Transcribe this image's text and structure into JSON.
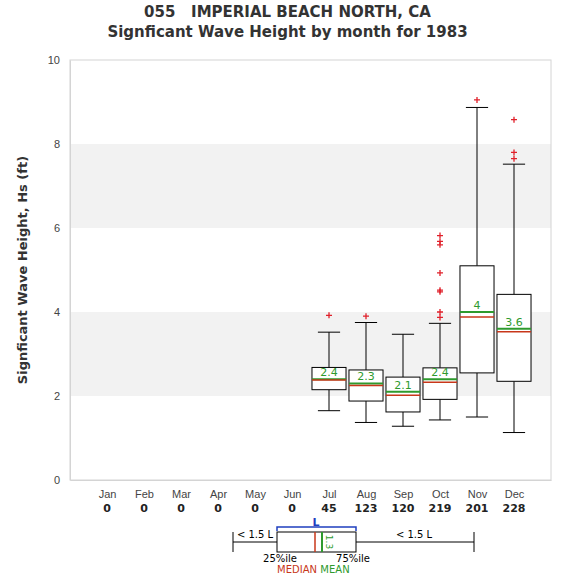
{
  "chart_data": {
    "type": "box",
    "title": "055   IMPERIAL BEACH NORTH, CA",
    "subtitle": "Signficant Wave Height by month for 1983",
    "y_label": "Signficant Wave Height, Hs (ft)",
    "categories": [
      "Jan",
      "Feb",
      "Mar",
      "Apr",
      "May",
      "Jun",
      "Jul",
      "Aug",
      "Sep",
      "Oct",
      "Nov",
      "Dec"
    ],
    "counts": [
      0,
      0,
      0,
      0,
      0,
      0,
      45,
      123,
      120,
      219,
      201,
      228
    ],
    "whisker_low": [
      null,
      null,
      null,
      null,
      null,
      null,
      1.65,
      1.37,
      1.28,
      1.43,
      1.5,
      1.13
    ],
    "q1": [
      null,
      null,
      null,
      null,
      null,
      null,
      2.15,
      1.88,
      1.62,
      1.92,
      2.55,
      2.35
    ],
    "median": [
      null,
      null,
      null,
      null,
      null,
      null,
      2.38,
      2.25,
      2.02,
      2.33,
      3.88,
      3.53
    ],
    "q3": [
      null,
      null,
      null,
      null,
      null,
      null,
      2.68,
      2.62,
      2.45,
      2.67,
      5.1,
      4.42
    ],
    "whisker_high": [
      null,
      null,
      null,
      null,
      null,
      null,
      3.52,
      3.75,
      3.47,
      3.73,
      8.87,
      7.52
    ],
    "mean": [
      null,
      null,
      null,
      null,
      null,
      null,
      2.4,
      2.3,
      2.1,
      2.4,
      4.0,
      3.6
    ],
    "outliers": [
      [],
      [],
      [],
      [],
      [],
      [],
      [
        3.92
      ],
      [
        3.9
      ],
      [],
      [
        3.87,
        4.0,
        4.48,
        4.52,
        4.93,
        5.6,
        5.68,
        5.82
      ],
      [
        9.05
      ],
      [
        7.65,
        7.8,
        8.58
      ]
    ],
    "data_labels": true,
    "grid": true,
    "ylim": [
      0,
      10
    ],
    "yticks": [
      0,
      2,
      4,
      6,
      8,
      10
    ],
    "key": {
      "whisker": "< 1.5 L",
      "iqr": "L",
      "q1": "25%ile",
      "q3": "75%ile",
      "median": "MEDIAN",
      "mean": "MEAN",
      "mean_value": "1.3"
    }
  }
}
